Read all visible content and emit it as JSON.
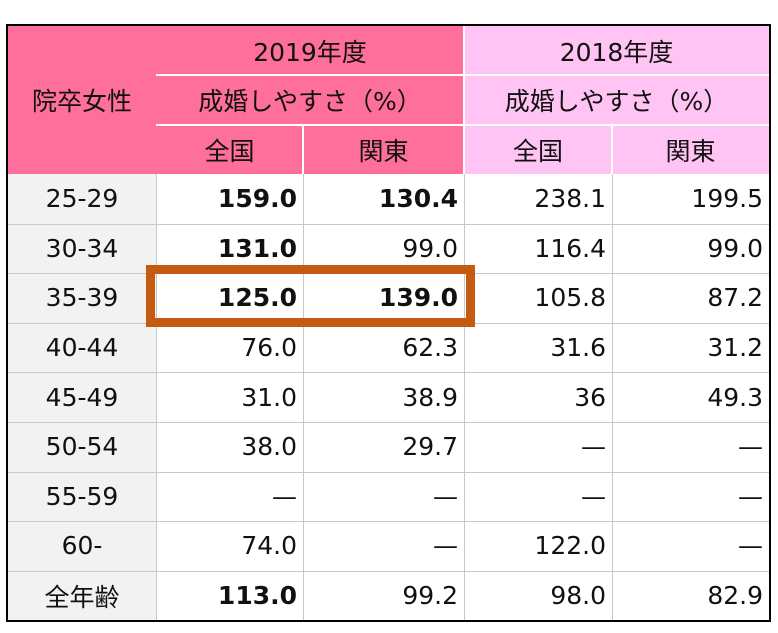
{
  "colors": {
    "header_2019": "#ff6f9b",
    "header_2018": "#ffc4f4",
    "row_label_bg": "#f2f2f2",
    "highlight_border": "#c55a11"
  },
  "header": {
    "corner_label": "院卒女性",
    "year_2019": "2019年度",
    "year_2018": "2018年度",
    "metric_2019": "成婚しやすさ（%）",
    "metric_2018": "成婚しやすさ（%）",
    "col_national_2019": "全国",
    "col_kanto_2019": "関東",
    "col_national_2018": "全国",
    "col_kanto_2018": "関東"
  },
  "rows": [
    {
      "age": "25-29",
      "n2019": "159.0",
      "k2019": "130.4",
      "n2018": "238.1",
      "k2018": "199.5"
    },
    {
      "age": "30-34",
      "n2019": "131.0",
      "k2019": "99.0",
      "n2018": "116.4",
      "k2018": "99.0"
    },
    {
      "age": "35-39",
      "n2019": "125.0",
      "k2019": "139.0",
      "n2018": "105.8",
      "k2018": "87.2"
    },
    {
      "age": "40-44",
      "n2019": "76.0",
      "k2019": "62.3",
      "n2018": "31.6",
      "k2018": "31.2"
    },
    {
      "age": "45-49",
      "n2019": "31.0",
      "k2019": "38.9",
      "n2018": "36",
      "k2018": "49.3"
    },
    {
      "age": "50-54",
      "n2019": "38.0",
      "k2019": "29.7",
      "n2018": "—",
      "k2018": "—"
    },
    {
      "age": "55-59",
      "n2019": "—",
      "k2019": "—",
      "n2018": "—",
      "k2018": "—"
    },
    {
      "age": "60-",
      "n2019": "74.0",
      "k2019": "—",
      "n2018": "122.0",
      "k2018": "—"
    },
    {
      "age": "全年齢",
      "n2019": "113.0",
      "k2019": "99.2",
      "n2018": "98.0",
      "k2018": "82.9"
    }
  ],
  "bold_cells": {
    "n2019": [
      0,
      1,
      2,
      8
    ],
    "k2019": [
      0,
      2
    ]
  },
  "highlighted_row": 2
}
